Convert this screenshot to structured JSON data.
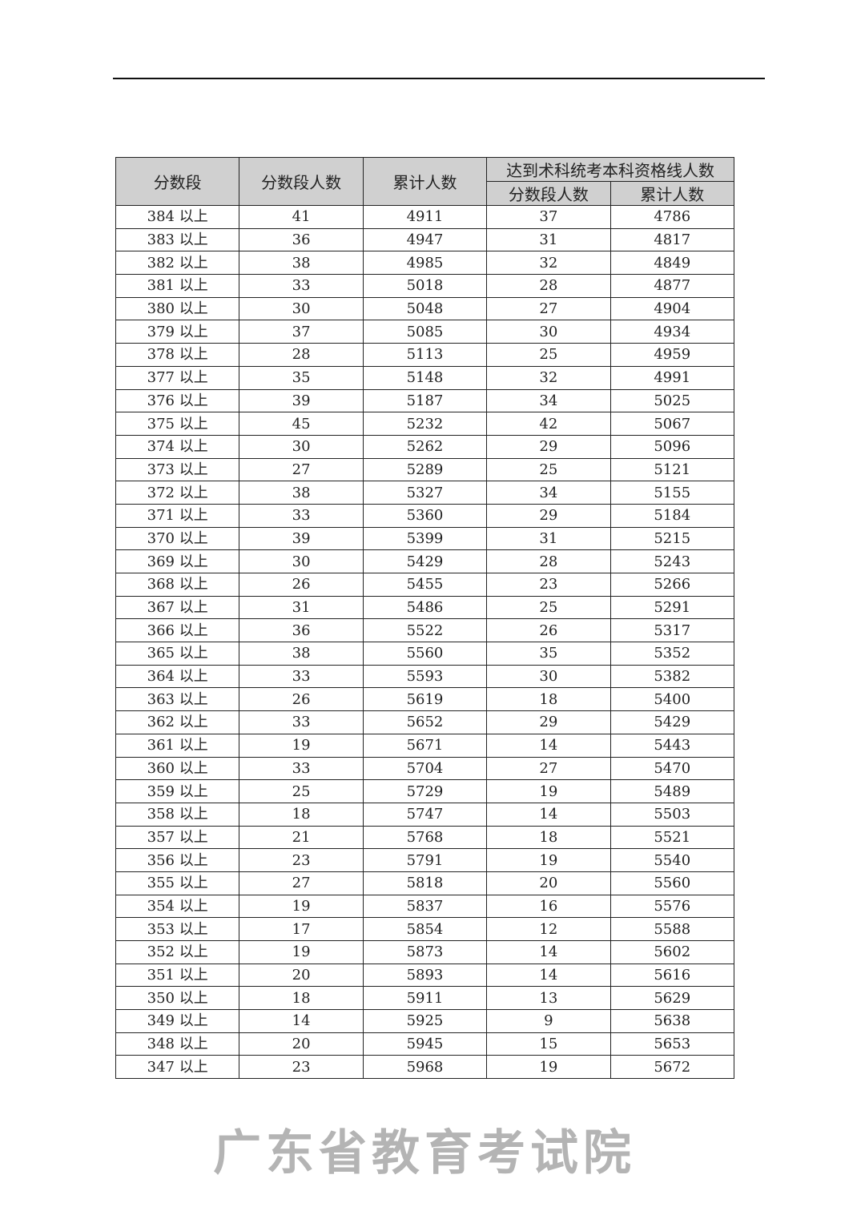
{
  "table": {
    "headers": {
      "score_band": "分数段",
      "band_count": "分数段人数",
      "cumulative": "累计人数",
      "group": "达到术科统考本科资格线人数",
      "sub_band_count": "分数段人数",
      "sub_cumulative": "累计人数"
    },
    "rows": [
      [
        "384 以上",
        "41",
        "4911",
        "37",
        "4786"
      ],
      [
        "383 以上",
        "36",
        "4947",
        "31",
        "4817"
      ],
      [
        "382 以上",
        "38",
        "4985",
        "32",
        "4849"
      ],
      [
        "381 以上",
        "33",
        "5018",
        "28",
        "4877"
      ],
      [
        "380 以上",
        "30",
        "5048",
        "27",
        "4904"
      ],
      [
        "379 以上",
        "37",
        "5085",
        "30",
        "4934"
      ],
      [
        "378 以上",
        "28",
        "5113",
        "25",
        "4959"
      ],
      [
        "377 以上",
        "35",
        "5148",
        "32",
        "4991"
      ],
      [
        "376 以上",
        "39",
        "5187",
        "34",
        "5025"
      ],
      [
        "375 以上",
        "45",
        "5232",
        "42",
        "5067"
      ],
      [
        "374 以上",
        "30",
        "5262",
        "29",
        "5096"
      ],
      [
        "373 以上",
        "27",
        "5289",
        "25",
        "5121"
      ],
      [
        "372 以上",
        "38",
        "5327",
        "34",
        "5155"
      ],
      [
        "371 以上",
        "33",
        "5360",
        "29",
        "5184"
      ],
      [
        "370 以上",
        "39",
        "5399",
        "31",
        "5215"
      ],
      [
        "369 以上",
        "30",
        "5429",
        "28",
        "5243"
      ],
      [
        "368 以上",
        "26",
        "5455",
        "23",
        "5266"
      ],
      [
        "367 以上",
        "31",
        "5486",
        "25",
        "5291"
      ],
      [
        "366 以上",
        "36",
        "5522",
        "26",
        "5317"
      ],
      [
        "365 以上",
        "38",
        "5560",
        "35",
        "5352"
      ],
      [
        "364 以上",
        "33",
        "5593",
        "30",
        "5382"
      ],
      [
        "363 以上",
        "26",
        "5619",
        "18",
        "5400"
      ],
      [
        "362 以上",
        "33",
        "5652",
        "29",
        "5429"
      ],
      [
        "361 以上",
        "19",
        "5671",
        "14",
        "5443"
      ],
      [
        "360 以上",
        "33",
        "5704",
        "27",
        "5470"
      ],
      [
        "359 以上",
        "25",
        "5729",
        "19",
        "5489"
      ],
      [
        "358 以上",
        "18",
        "5747",
        "14",
        "5503"
      ],
      [
        "357 以上",
        "21",
        "5768",
        "18",
        "5521"
      ],
      [
        "356 以上",
        "23",
        "5791",
        "19",
        "5540"
      ],
      [
        "355 以上",
        "27",
        "5818",
        "20",
        "5560"
      ],
      [
        "354 以上",
        "19",
        "5837",
        "16",
        "5576"
      ],
      [
        "353 以上",
        "17",
        "5854",
        "12",
        "5588"
      ],
      [
        "352 以上",
        "19",
        "5873",
        "14",
        "5602"
      ],
      [
        "351 以上",
        "20",
        "5893",
        "14",
        "5616"
      ],
      [
        "350 以上",
        "18",
        "5911",
        "13",
        "5629"
      ],
      [
        "349 以上",
        "14",
        "5925",
        "9",
        "5638"
      ],
      [
        "348 以上",
        "20",
        "5945",
        "15",
        "5653"
      ],
      [
        "347 以上",
        "23",
        "5968",
        "19",
        "5672"
      ]
    ]
  },
  "watermark": "广东省教育考试院",
  "colors": {
    "header_bg": "#d0d0d0",
    "watermark": "#aaaaaa"
  }
}
